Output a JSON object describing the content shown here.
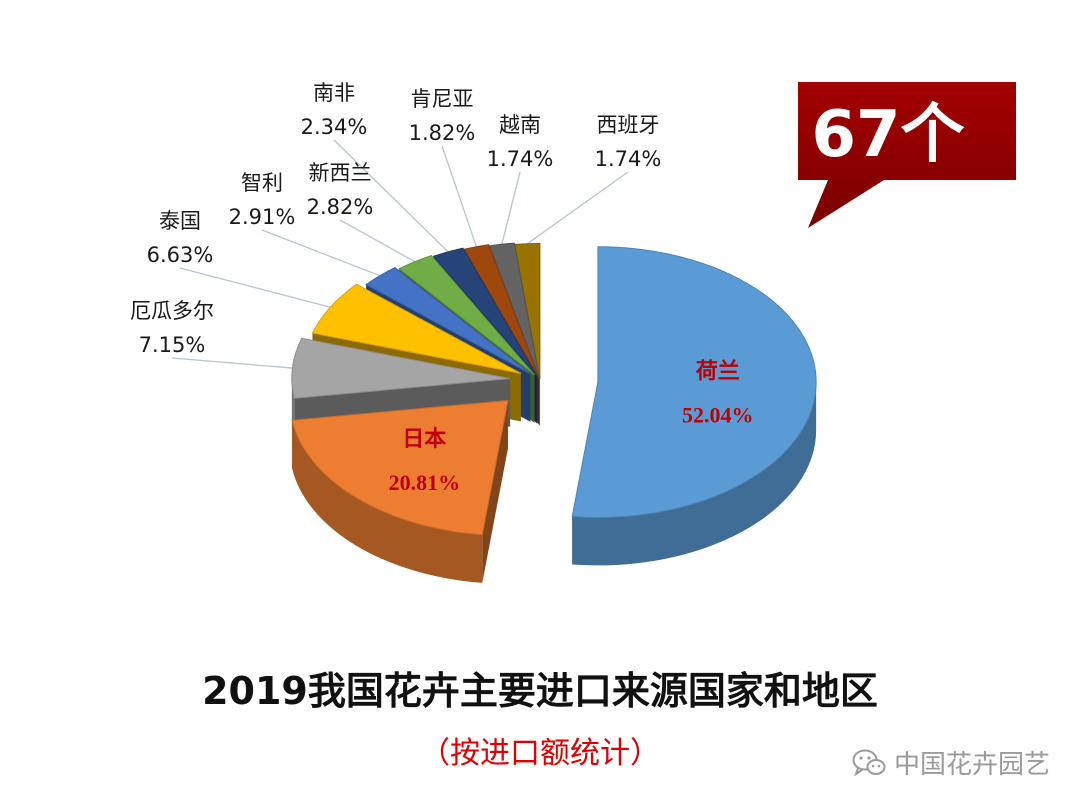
{
  "callout": {
    "text": "67个",
    "color": "#8e0000"
  },
  "title": "2019我国花卉主要进口来源国家和地区",
  "subtitle": "（按进口额统计）",
  "watermark": {
    "icon": "wechat-icon",
    "text": "中国花卉园艺"
  },
  "chart_data": {
    "type": "pie",
    "style": "3d-exploded",
    "title": "2019我国花卉主要进口来源国家和地区",
    "subtitle": "（按进口额统计）",
    "unit": "%",
    "slices": [
      {
        "label": "荷兰",
        "value": 52.04,
        "value_label": "52.04%",
        "color": "#5b9bd5"
      },
      {
        "label": "日本",
        "value": 20.81,
        "value_label": "20.81%",
        "color": "#ed7d31"
      },
      {
        "label": "厄瓜多尔",
        "value": 7.15,
        "value_label": "7.15%",
        "color": "#a5a5a5"
      },
      {
        "label": "泰国",
        "value": 6.63,
        "value_label": "6.63%",
        "color": "#ffc000"
      },
      {
        "label": "智利",
        "value": 2.91,
        "value_label": "2.91%",
        "color": "#4472c4"
      },
      {
        "label": "新西兰",
        "value": 2.82,
        "value_label": "2.82%",
        "color": "#70ad47"
      },
      {
        "label": "南非",
        "value": 2.34,
        "value_label": "2.34%",
        "color": "#264478"
      },
      {
        "label": "肯尼亚",
        "value": 1.82,
        "value_label": "1.82%",
        "color": "#9e480e"
      },
      {
        "label": "越南",
        "value": 1.74,
        "value_label": "1.74%",
        "color": "#636363"
      },
      {
        "label": "西班牙",
        "value": 1.74,
        "value_label": "1.74%",
        "color": "#997300"
      }
    ]
  }
}
